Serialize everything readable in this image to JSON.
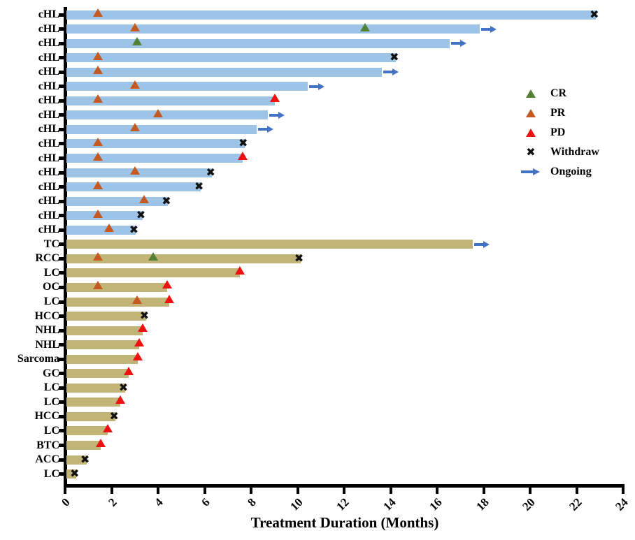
{
  "chart_data": {
    "type": "bar",
    "orientation": "horizontal-swimmer",
    "title": "",
    "xlabel": "Treatment Duration (Months)",
    "ylabel": "",
    "xlim": [
      0,
      24
    ],
    "xticks": [
      0,
      2,
      4,
      6,
      8,
      10,
      12,
      14,
      16,
      18,
      20,
      22,
      24
    ],
    "grid": false,
    "legend_position": "right-upper",
    "legend": [
      {
        "label": "CR",
        "marker": "triangle",
        "color": "#558135"
      },
      {
        "label": "PR",
        "marker": "triangle",
        "color": "#C45A21"
      },
      {
        "label": "PD",
        "marker": "triangle",
        "color": "#EE1111"
      },
      {
        "label": "Withdraw",
        "marker": "cross",
        "color": "#111111"
      },
      {
        "label": "Ongoing",
        "marker": "arrow",
        "color": "#4472C4"
      }
    ],
    "colors": {
      "chl_bar": "#9DC3E6",
      "other_bar": "#C2B477",
      "CR": "#558135",
      "PR": "#C45A21",
      "PD": "#EE1111",
      "withdraw": "#111111",
      "ongoing": "#4472C4",
      "axis": "#000000"
    },
    "rows": [
      {
        "label": "cHL",
        "duration": 22.8,
        "end": "withdraw",
        "markers": [
          {
            "type": "PR",
            "month": 1.4
          }
        ]
      },
      {
        "label": "cHL",
        "duration": 17.8,
        "end": "ongoing",
        "markers": [
          {
            "type": "PR",
            "month": 3.0
          },
          {
            "type": "CR",
            "month": 12.9
          }
        ]
      },
      {
        "label": "cHL",
        "duration": 16.5,
        "end": "ongoing",
        "markers": [
          {
            "type": "CR",
            "month": 3.1
          }
        ]
      },
      {
        "label": "cHL",
        "duration": 14.2,
        "end": "withdraw",
        "markers": [
          {
            "type": "PR",
            "month": 1.4
          }
        ]
      },
      {
        "label": "cHL",
        "duration": 13.6,
        "end": "ongoing",
        "markers": [
          {
            "type": "PR",
            "month": 1.4
          }
        ]
      },
      {
        "label": "cHL",
        "duration": 10.4,
        "end": "ongoing",
        "markers": [
          {
            "type": "PR",
            "month": 3.0
          }
        ]
      },
      {
        "label": "cHL",
        "duration": 9.0,
        "end": "pd",
        "markers": [
          {
            "type": "PR",
            "month": 1.4
          }
        ]
      },
      {
        "label": "cHL",
        "duration": 8.7,
        "end": "ongoing",
        "markers": [
          {
            "type": "PR",
            "month": 4.0
          }
        ]
      },
      {
        "label": "cHL",
        "duration": 8.2,
        "end": "ongoing",
        "markers": [
          {
            "type": "PR",
            "month": 3.0
          }
        ]
      },
      {
        "label": "cHL",
        "duration": 7.7,
        "end": "withdraw",
        "markers": [
          {
            "type": "PR",
            "month": 1.4
          }
        ]
      },
      {
        "label": "cHL",
        "duration": 7.6,
        "end": "pd",
        "markers": [
          {
            "type": "PR",
            "month": 1.4
          }
        ]
      },
      {
        "label": "cHL",
        "duration": 6.3,
        "end": "withdraw",
        "markers": [
          {
            "type": "PR",
            "month": 3.0
          }
        ]
      },
      {
        "label": "cHL",
        "duration": 5.8,
        "end": "withdraw",
        "markers": [
          {
            "type": "PR",
            "month": 1.4
          }
        ]
      },
      {
        "label": "cHL",
        "duration": 4.4,
        "end": "withdraw",
        "markers": [
          {
            "type": "PR",
            "month": 3.4
          }
        ]
      },
      {
        "label": "cHL",
        "duration": 3.3,
        "end": "withdraw",
        "markers": [
          {
            "type": "PR",
            "month": 1.4
          }
        ]
      },
      {
        "label": "cHL",
        "duration": 3.0,
        "end": "withdraw",
        "markers": [
          {
            "type": "PR",
            "month": 1.9
          }
        ]
      },
      {
        "label": "TC",
        "duration": 17.5,
        "end": "ongoing",
        "markers": []
      },
      {
        "label": "RCC",
        "duration": 10.1,
        "end": "withdraw",
        "markers": [
          {
            "type": "PR",
            "month": 1.4
          },
          {
            "type": "CR",
            "month": 3.8
          }
        ]
      },
      {
        "label": "LC",
        "duration": 7.5,
        "end": "pd",
        "markers": []
      },
      {
        "label": "OC",
        "duration": 4.35,
        "end": "pd",
        "markers": [
          {
            "type": "PR",
            "month": 1.4
          }
        ]
      },
      {
        "label": "LC",
        "duration": 4.45,
        "end": "pd",
        "markers": [
          {
            "type": "PR",
            "month": 3.1
          }
        ]
      },
      {
        "label": "HCC",
        "duration": 3.45,
        "end": "withdraw",
        "markers": []
      },
      {
        "label": "NHL",
        "duration": 3.3,
        "end": "pd",
        "markers": []
      },
      {
        "label": "NHL",
        "duration": 3.15,
        "end": "pd",
        "markers": []
      },
      {
        "label": "Sarcoma",
        "duration": 3.1,
        "end": "pd",
        "markers": []
      },
      {
        "label": "GC",
        "duration": 2.7,
        "end": "pd",
        "markers": []
      },
      {
        "label": "LC",
        "duration": 2.55,
        "end": "withdraw",
        "markers": []
      },
      {
        "label": "LC",
        "duration": 2.35,
        "end": "pd",
        "markers": []
      },
      {
        "label": "HCC",
        "duration": 2.15,
        "end": "withdraw",
        "markers": []
      },
      {
        "label": "LC",
        "duration": 1.8,
        "end": "pd",
        "markers": []
      },
      {
        "label": "BTC",
        "duration": 1.5,
        "end": "pd",
        "markers": []
      },
      {
        "label": "ACC",
        "duration": 0.9,
        "end": "withdraw",
        "markers": []
      },
      {
        "label": "LC",
        "duration": 0.45,
        "end": "withdraw",
        "markers": []
      }
    ]
  }
}
